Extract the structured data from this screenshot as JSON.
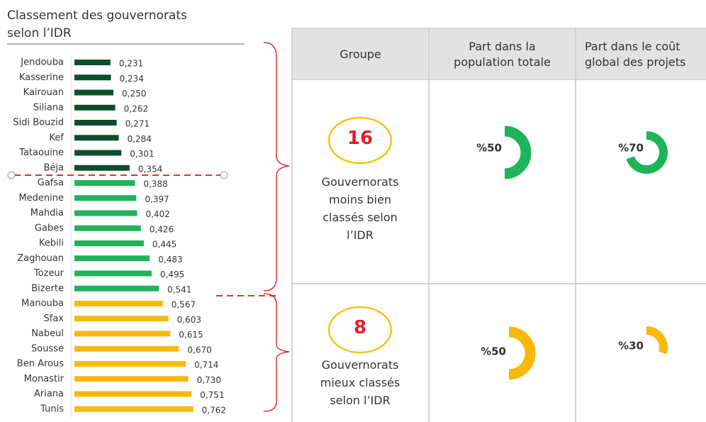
{
  "chart_data": {
    "type": "bar",
    "title": "Classement des gouvernorats selon l’IDR",
    "categories": [
      "Jendouba",
      "Kasserine",
      "Kairouan",
      "Siliana",
      "Sidi Bouzid",
      "Kef",
      "Tataouine",
      "Béja",
      "Gafsa",
      "Medenine",
      "Mahdia",
      "Gabes",
      "Kebili",
      "Zaghouan",
      "Tozeur",
      "Bizerte",
      "Manouba",
      "Sfax",
      "Nabeul",
      "Sousse",
      "Ben Arous",
      "Monastir",
      "Ariana",
      "Tunis"
    ],
    "values": [
      0.231,
      0.234,
      0.25,
      0.262,
      0.271,
      0.284,
      0.301,
      0.354,
      0.388,
      0.397,
      0.402,
      0.426,
      0.445,
      0.483,
      0.495,
      0.541,
      0.567,
      0.603,
      0.615,
      0.67,
      0.714,
      0.73,
      0.751,
      0.762
    ],
    "value_labels": [
      "0,231",
      "0,234",
      "0,250",
      "0,262",
      "0,271",
      "0,284",
      "0,301",
      "0,354",
      "0,388",
      "0,397",
      "0,402",
      "0,426",
      "0,445",
      "0,483",
      "0,495",
      "0,541",
      "0,567",
      "0,603",
      "0,615",
      "0,670",
      "0,714",
      "0,730",
      "0,751",
      "0,762"
    ],
    "colors": [
      "#0d4d2c",
      "#0d4d2c",
      "#0d4d2c",
      "#0d4d2c",
      "#0d4d2c",
      "#0d4d2c",
      "#0d4d2c",
      "#0d4d2c",
      "#1db45a",
      "#1db45a",
      "#1db45a",
      "#1db45a",
      "#1db45a",
      "#1db45a",
      "#1db45a",
      "#1db45a",
      "#f7b90f",
      "#f7b90f",
      "#f7b90f",
      "#f7b90f",
      "#f7b90f",
      "#f7b90f",
      "#f7b90f",
      "#f7b90f"
    ]
  },
  "table": {
    "header": [
      "Groupe",
      "Part dans la population totale",
      "Part dans le coût global des projets"
    ],
    "rows": [
      {
        "count": 16,
        "group": "Gouvernorats moins bien classés selon l’IDR",
        "color": "#1db45a",
        "shares": [
          {
            "value": 50,
            "label": "%50"
          },
          {
            "value": 70,
            "label": "%70"
          }
        ]
      },
      {
        "count": 8,
        "group": "Gouvernorats mieux classés selon l’IDR",
        "color": "#f7b90f",
        "shares": [
          {
            "value": 50,
            "label": "%50"
          },
          {
            "value": 30,
            "label": "%30"
          }
        ]
      }
    ]
  }
}
